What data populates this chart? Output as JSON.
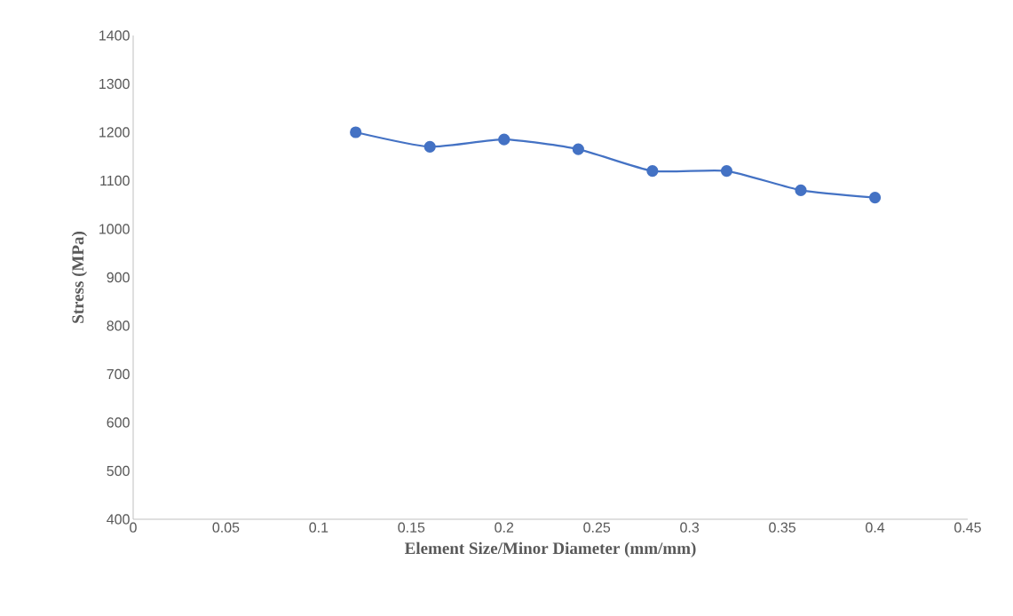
{
  "chart_data": {
    "type": "line",
    "xlabel": "Element Size/Minor Diameter (mm/mm)",
    "ylabel": "Stress (MPa)",
    "x": [
      0.12,
      0.16,
      0.2,
      0.24,
      0.28,
      0.32,
      0.36,
      0.4
    ],
    "series": [
      {
        "color": "#4472c4",
        "values": [
          1200,
          1170,
          1185,
          1165,
          1120,
          1120,
          1080,
          1065
        ]
      }
    ],
    "xlim": [
      0,
      0.45
    ],
    "xticks": [
      0,
      0.05,
      0.1,
      0.15,
      0.2,
      0.25,
      0.3,
      0.35,
      0.4,
      0.45
    ],
    "ylim": [
      400,
      1400
    ],
    "yticks": [
      400,
      500,
      600,
      700,
      800,
      900,
      1000,
      1100,
      1200,
      1300,
      1400
    ],
    "grid": false,
    "legend": false,
    "marker": "circle",
    "line_style": "solid"
  }
}
